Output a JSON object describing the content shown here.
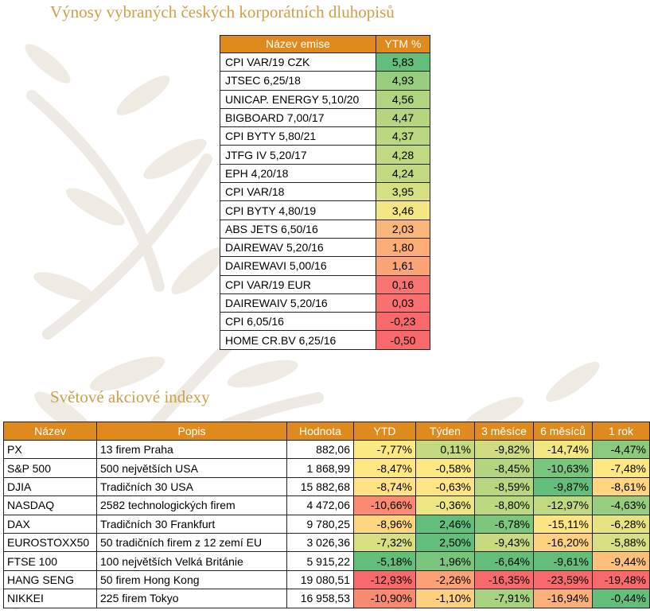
{
  "bonds_title": "Výnosy vybraných českých korporátních dluhopisů",
  "bonds_table": {
    "headers": [
      "Název emise",
      "YTM %"
    ],
    "rows": [
      {
        "name": "CPI VAR/19 CZK",
        "ytm": "5,83",
        "color": "#63be7b"
      },
      {
        "name": "JTSEC 6,25/18",
        "ytm": "4,93",
        "color": "#98cd7e"
      },
      {
        "name": "UNICAP. ENERGY 5,10/20",
        "ytm": "4,56",
        "color": "#b0d47f"
      },
      {
        "name": "BIGBOARD 7,00/17",
        "ytm": "4,47",
        "color": "#b5d57f"
      },
      {
        "name": "CPI BYTY 5,80/21",
        "ytm": "4,37",
        "color": "#bbd780"
      },
      {
        "name": "JTFG IV 5,20/17",
        "ytm": "4,28",
        "color": "#c0d980"
      },
      {
        "name": "EPH 4,20/18",
        "ytm": "4,24",
        "color": "#c3d980"
      },
      {
        "name": "CPI VAR/18",
        "ytm": "3,95",
        "color": "#d6df81"
      },
      {
        "name": "CPI BYTY 4,80/19",
        "ytm": "3,46",
        "color": "#f4e683"
      },
      {
        "name": "ABS JETS 6,50/16",
        "ytm": "2,03",
        "color": "#fcb579"
      },
      {
        "name": "DAIREWAV 5,20/16",
        "ytm": "1,80",
        "color": "#fcac77"
      },
      {
        "name": "DAIREWAVI 5,00/16",
        "ytm": "1,61",
        "color": "#fba475"
      },
      {
        "name": "CPI VAR/19 EUR",
        "ytm": "0,16",
        "color": "#f87470"
      },
      {
        "name": "DAIREWAIV 5,20/16",
        "ytm": "0,03",
        "color": "#f8706f"
      },
      {
        "name": "CPI 6,05/16",
        "ytm": "-0,23",
        "color": "#f8696b"
      },
      {
        "name": "HOME CR.BV 6,25/16",
        "ytm": "-0,50",
        "color": "#f8696b"
      }
    ]
  },
  "stocks_title": "Světové akciové indexy",
  "stocks_table": {
    "headers": [
      "Název",
      "Popis",
      "Hodnota",
      "YTD",
      "Týden",
      "3 měsíce",
      "6 měsíců",
      "1 rok"
    ],
    "rows": [
      {
        "name": "PX",
        "desc": "13 firem Praha",
        "value": "882,06",
        "ytd": "-7,77%",
        "ytd_c": "#fbe983",
        "week": "0,11%",
        "week_c": "#c5da80",
        "m3": "-9,82%",
        "m3_c": "#cfdc81",
        "m6": "-14,74%",
        "m6_c": "#f2e783",
        "y1": "-4,47%",
        "y1_c": "#8ccb7e"
      },
      {
        "name": "S&P 500",
        "desc": "500 největších USA",
        "value": "1 868,99",
        "ytd": "-8,47%",
        "ytd_c": "#ffe884",
        "week": "-0,58%",
        "week_c": "#fde883",
        "m3": "-8,45%",
        "m3_c": "#b4d57f",
        "m6": "-10,63%",
        "m6_c": "#78c57d",
        "y1": "-7,48%",
        "y1_c": "#ffe884"
      },
      {
        "name": "DJIA",
        "desc": "Tradičních 30 USA",
        "value": "15 882,68",
        "ytd": "-8,74%",
        "ytd_c": "#ffe283",
        "week": "-0,63%",
        "week_c": "#ffe583",
        "m3": "-8,59%",
        "m3_c": "#b7d67f",
        "m6": "-9,87%",
        "m6_c": "#63be7b",
        "y1": "-8,61%",
        "y1_c": "#ffd680"
      },
      {
        "name": "NASDAQ",
        "desc": "2582 technologických firem",
        "value": "4 472,06",
        "ytd": "-10,66%",
        "ytd_c": "#fa8a72",
        "week": "-0,36%",
        "week_c": "#eee583",
        "m3": "-8,80%",
        "m3_c": "#bcd880",
        "m6": "-12,97%",
        "m6_c": "#c0d980",
        "y1": "-4,63%",
        "y1_c": "#96cd7e"
      },
      {
        "name": "DAX",
        "desc": "Tradičních 30 Frankfurt",
        "value": "9 780,25",
        "ytd": "-8,96%",
        "ytd_c": "#ffd680",
        "week": "2,46%",
        "week_c": "#63be7b",
        "m3": "-6,78%",
        "m3_c": "#7dc67d",
        "m6": "-15,11%",
        "m6_c": "#fee583",
        "y1": "-6,28%",
        "y1_c": "#e7e382"
      },
      {
        "name": "EUROSTOXX50",
        "desc": "50 tradičních firem z 12 zemí EU",
        "value": "3 026,36",
        "ytd": "-7,32%",
        "ytd_c": "#d7df81",
        "week": "2,50%",
        "week_c": "#63be7b",
        "m3": "-9,43%",
        "m3_c": "#c8da80",
        "m6": "-16,20%",
        "m6_c": "#fdd17f",
        "y1": "-5,88%",
        "y1_c": "#d6df81"
      },
      {
        "name": "FTSE 100",
        "desc": "100 největších Velká Británie",
        "value": "5 915,22",
        "ytd": "-5,18%",
        "ytd_c": "#63be7b",
        "week": "1,96%",
        "week_c": "#7ac57d",
        "m3": "-6,64%",
        "m3_c": "#63be7b",
        "m6": "-9,61%",
        "m6_c": "#63be7b",
        "y1": "-9,44%",
        "y1_c": "#fdc07c"
      },
      {
        "name": "HANG SENG",
        "desc": "50 firem Hong Kong",
        "value": "19 080,51",
        "ytd": "-12,93%",
        "ytd_c": "#f8696b",
        "week": "-2,26%",
        "week_c": "#fba176",
        "m3": "-16,35%",
        "m3_c": "#f8696b",
        "m6": "-23,59%",
        "m6_c": "#f8696b",
        "y1": "-19,48%",
        "y1_c": "#f8696b"
      },
      {
        "name": "NIKKEI",
        "desc": "225 firem Tokyo",
        "value": "16 958,53",
        "ytd": "-10,90%",
        "ytd_c": "#f98a72",
        "week": "-1,10%",
        "week_c": "#fcd07f",
        "m3": "-7,91%",
        "m3_c": "#a7d27f",
        "m6": "-16,94%",
        "m6_c": "#fbb07a",
        "y1": "-0,44%",
        "y1_c": "#63be7b"
      }
    ]
  }
}
